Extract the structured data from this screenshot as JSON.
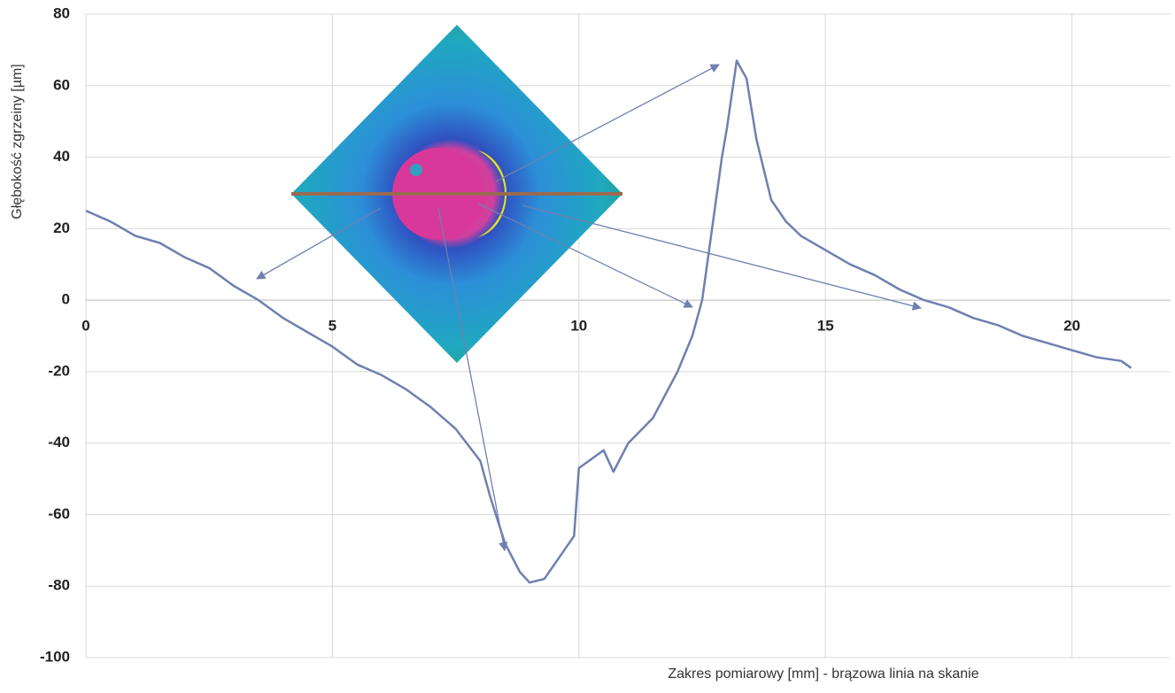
{
  "chart_data": {
    "type": "line",
    "y_label": "Głębokość zgrzeiny [µm]",
    "x_label": "Zakres pomiarowy [mm] - brązowa linia na skanie",
    "x": [
      0,
      0.5,
      1,
      1.5,
      2,
      2.5,
      3,
      3.5,
      4,
      4.5,
      5,
      5.5,
      6,
      6.5,
      7,
      7.5,
      8,
      8.2,
      8.5,
      8.8,
      9,
      9.3,
      9.6,
      9.9,
      10,
      10.5,
      10.7,
      11,
      11.5,
      12,
      12.3,
      12.5,
      12.6,
      12.7,
      12.9,
      13,
      13.2,
      13.4,
      13.6,
      13.9,
      14.2,
      14.5,
      15,
      15.5,
      16,
      16.5,
      17,
      17.5,
      18,
      18.5,
      19,
      19.5,
      20,
      20.5,
      21,
      21.2
    ],
    "values": [
      25,
      22,
      18,
      16,
      12,
      9,
      4,
      0,
      -5,
      -9,
      -13,
      -18,
      -21,
      -25,
      -30,
      -36,
      -45,
      -55,
      -68,
      -76,
      -79,
      -78,
      -72,
      -66,
      -47,
      -42,
      -48,
      -40,
      -33,
      -20,
      -10,
      0,
      10,
      20,
      40,
      48,
      67,
      62,
      45,
      28,
      22,
      18,
      14,
      10,
      7,
      3,
      0,
      -2,
      -5,
      -7,
      -10,
      -12,
      -14,
      -16,
      -17,
      -19
    ],
    "color": "#6f80b0",
    "xlim": [
      0,
      22
    ],
    "xticks": [
      0,
      5,
      10,
      15,
      20
    ],
    "ylim": [
      -100,
      80
    ],
    "yticks": [
      -100,
      -80,
      -60,
      -40,
      -20,
      0,
      20,
      40,
      60,
      80
    ],
    "grid": true
  }
}
